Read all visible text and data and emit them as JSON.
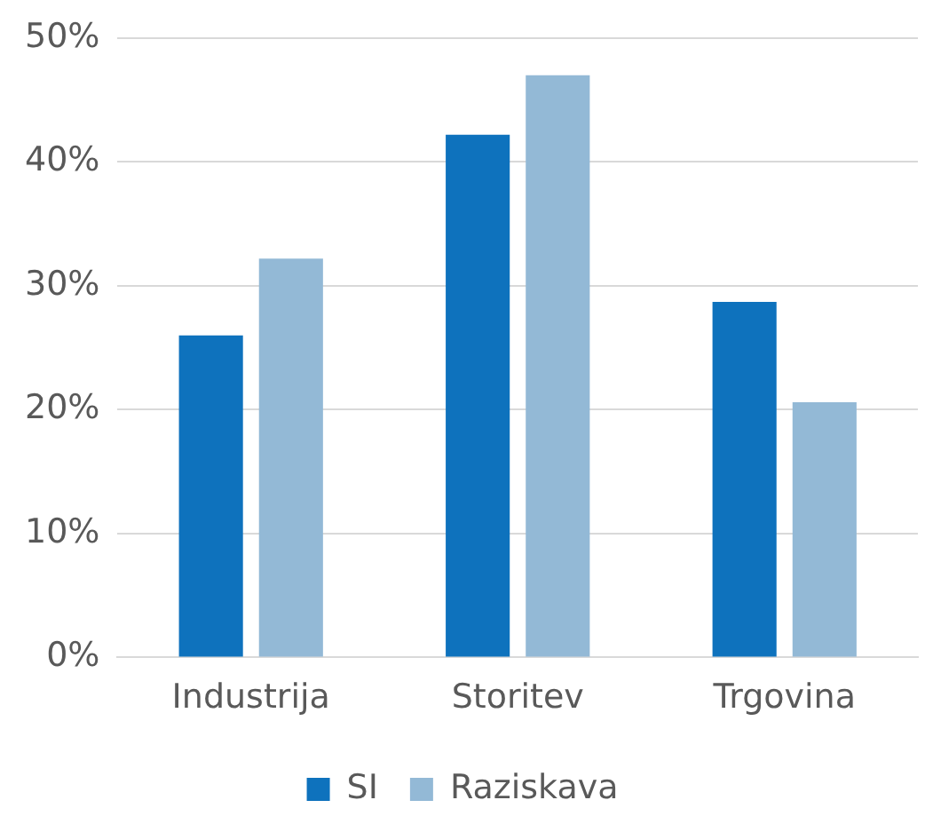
{
  "chart_data": {
    "type": "bar",
    "categories": [
      "Industrija",
      "Storitev",
      "Trgovina"
    ],
    "series": [
      {
        "name": "SI",
        "color": "#0e72bd",
        "values": [
          26,
          42.2,
          28.7
        ]
      },
      {
        "name": "Raziskava",
        "color": "#93b9d6",
        "values": [
          32.2,
          47,
          20.6
        ]
      }
    ],
    "ylim": [
      0,
      50
    ],
    "yticks": [
      {
        "value": 0,
        "label": "0%"
      },
      {
        "value": 10,
        "label": "10%"
      },
      {
        "value": 20,
        "label": "20%"
      },
      {
        "value": 30,
        "label": "30%"
      },
      {
        "value": 40,
        "label": "40%"
      },
      {
        "value": 50,
        "label": "50%"
      }
    ],
    "grid": "y",
    "legend": "bottom"
  }
}
